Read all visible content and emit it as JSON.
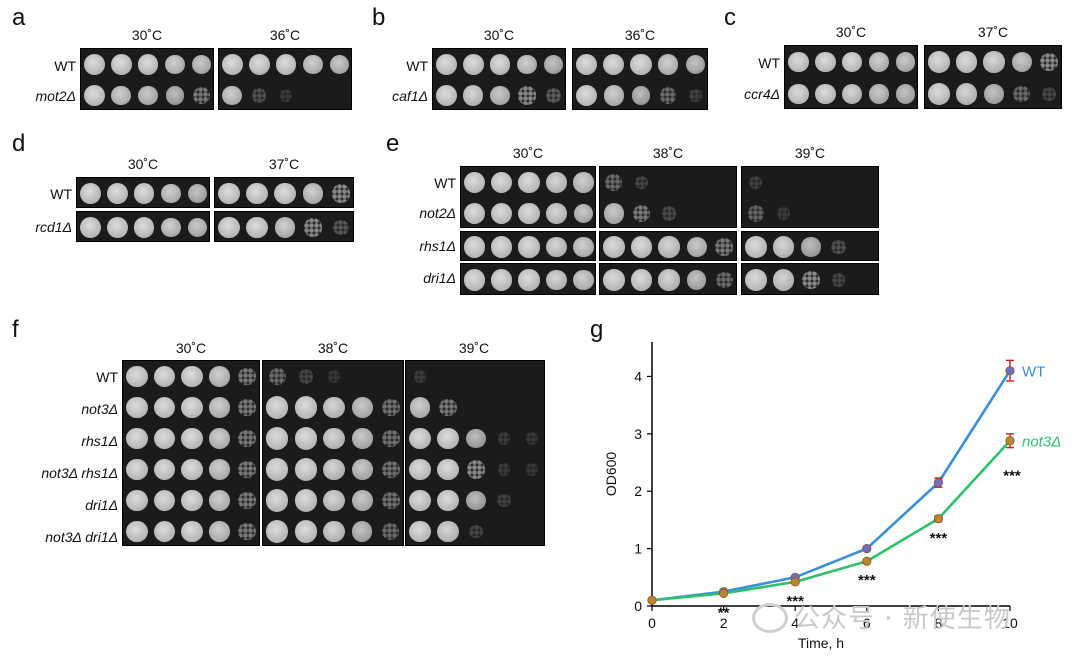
{
  "panels": [
    {
      "id": "a",
      "letter": "a",
      "temps": [
        "30˚C",
        "36˚C"
      ],
      "strains": [
        {
          "name": "WT",
          "italic": false
        },
        {
          "name": "mot2Δ",
          "italic": true
        }
      ]
    },
    {
      "id": "b",
      "letter": "b",
      "temps": [
        "30˚C",
        "36˚C"
      ],
      "strains": [
        {
          "name": "WT",
          "italic": false
        },
        {
          "name": "caf1Δ",
          "italic": true
        }
      ]
    },
    {
      "id": "c",
      "letter": "c",
      "temps": [
        "30˚C",
        "37˚C"
      ],
      "strains": [
        {
          "name": "WT",
          "italic": false
        },
        {
          "name": "ccr4Δ",
          "italic": true
        }
      ]
    },
    {
      "id": "d",
      "letter": "d",
      "temps": [
        "30˚C",
        "37˚C"
      ],
      "strains": [
        {
          "name": "WT",
          "italic": false
        },
        {
          "name": "rcd1Δ",
          "italic": true
        }
      ]
    },
    {
      "id": "e",
      "letter": "e",
      "temps": [
        "30˚C",
        "38˚C",
        "39˚C"
      ],
      "strains": [
        {
          "name": "WT",
          "italic": false
        },
        {
          "name": "not2Δ",
          "italic": true
        },
        {
          "name": "rhs1Δ",
          "italic": true
        },
        {
          "name": "dri1Δ",
          "italic": true
        }
      ]
    },
    {
      "id": "f",
      "letter": "f",
      "temps": [
        "30˚C",
        "38˚C",
        "39˚C"
      ],
      "strains": [
        {
          "name": "WT",
          "italic": false
        },
        {
          "name": "not3Δ",
          "italic": true
        },
        {
          "name": "rhs1Δ",
          "italic": true
        },
        {
          "name": "not3Δ rhs1Δ",
          "italic": true
        },
        {
          "name": "dri1Δ",
          "italic": true
        },
        {
          "name": "not3Δ dri1Δ",
          "italic": true
        }
      ]
    }
  ],
  "chart_data": {
    "type": "line",
    "panel_letter": "g",
    "xlabel": "Time, h",
    "ylabel": "OD600",
    "x": [
      0,
      2,
      4,
      6,
      8,
      10
    ],
    "xlim": [
      0,
      10
    ],
    "ylim": [
      0,
      4.6
    ],
    "xticks": [
      "0",
      "2",
      "4",
      "6",
      "8",
      "10"
    ],
    "yticks": [
      "0",
      "1",
      "2",
      "3",
      "4"
    ],
    "series": [
      {
        "name": "WT",
        "color": "#3a8fdb",
        "marker_color": "#6e6fc4",
        "values": [
          0.1,
          0.25,
          0.5,
          1.0,
          2.15,
          4.1
        ],
        "errors": [
          0.01,
          0.02,
          0.03,
          0.03,
          0.08,
          0.18
        ]
      },
      {
        "name": "not3Δ",
        "color": "#2ec06a",
        "marker_color": "#b8862f",
        "values": [
          0.1,
          0.22,
          0.42,
          0.78,
          1.52,
          2.88
        ],
        "errors": [
          0.01,
          0.02,
          0.03,
          0.03,
          0.05,
          0.12
        ]
      }
    ],
    "annotations": [
      {
        "x": 2,
        "text": "**"
      },
      {
        "x": 4,
        "text": "***"
      },
      {
        "x": 6,
        "text": "***"
      },
      {
        "x": 8,
        "text": "***"
      },
      {
        "x": 10,
        "text": "***"
      }
    ],
    "grid": false
  },
  "watermark": "公众号 · 新使生物"
}
